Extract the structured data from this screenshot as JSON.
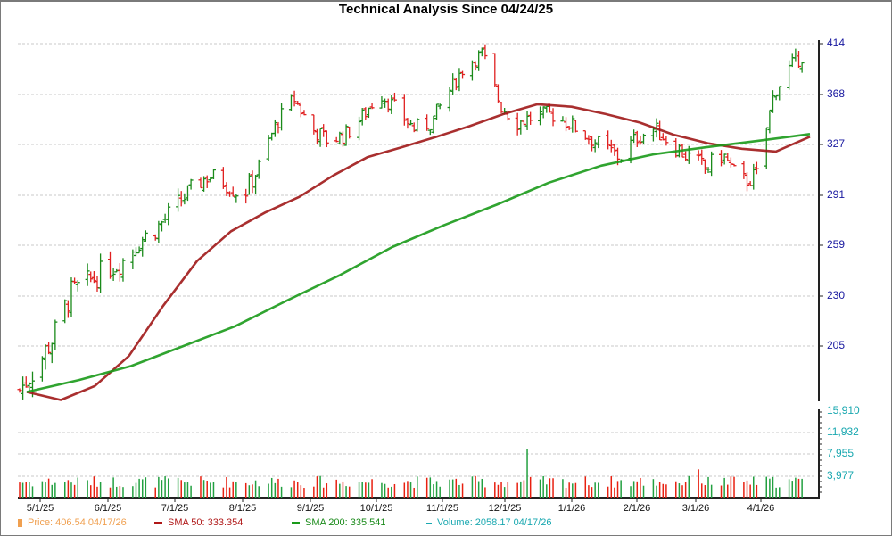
{
  "chart_data": {
    "type": "line",
    "title": "Technical Analysis Since 04/24/25",
    "xlabel": "",
    "ylabel": "",
    "price_axis": {
      "ticks": [
        "414",
        "368",
        "327",
        "291",
        "259",
        "230",
        "205"
      ],
      "grid": true
    },
    "volume_axis": {
      "ticks": [
        "15,910",
        "11,932",
        "7,955",
        "3,977"
      ],
      "grid": true
    },
    "x_ticks": [
      "5/1/25",
      "6/1/25",
      "7/1/25",
      "8/1/25",
      "9/1/25",
      "10/1/25",
      "11/1/25",
      "12/1/25",
      "1/1/26",
      "2/1/26",
      "3/1/26",
      "4/1/26"
    ],
    "series": [
      {
        "name": "Price (OHLC)",
        "approx_closes": [
          183,
          195,
          210,
          232,
          238,
          245,
          250,
          262,
          270,
          282,
          295,
          305,
          300,
          290,
          312,
          345,
          365,
          340,
          330,
          335,
          350,
          370,
          355,
          340,
          345,
          370,
          395,
          405,
          360,
          345,
          350,
          352,
          345,
          335,
          325,
          318,
          333,
          340,
          328,
          318,
          310,
          320,
          300,
          305,
          370,
          395,
          406.54
        ]
      },
      {
        "name": "SMA 50",
        "approx_values": [
          182,
          178,
          185,
          200,
          225,
          250,
          268,
          280,
          290,
          305,
          318,
          325,
          333,
          342,
          352,
          360,
          358,
          352,
          345,
          335,
          328,
          324,
          322,
          333.354
        ]
      },
      {
        "name": "SMA 200",
        "approx_values": [
          182,
          188,
          195,
          205,
          215,
          228,
          242,
          258,
          272,
          285,
          300,
          312,
          320,
          325,
          330,
          335.541
        ]
      }
    ],
    "legend_position": "bottom"
  },
  "legend": {
    "price": "Price: 406.54  04/17/26",
    "sma50": "SMA 50: 333.354",
    "sma200": "SMA 200: 335.541",
    "volume": "Volume: 2058.17  04/17/26"
  },
  "colors": {
    "up": "#1a8a1a",
    "down": "#e02020",
    "sma50": "#a01818",
    "sma200": "#1a9a1a",
    "price_label": "#f0a050",
    "volume_label": "#1aa8b0",
    "axis_label": "#1a1aa0"
  }
}
